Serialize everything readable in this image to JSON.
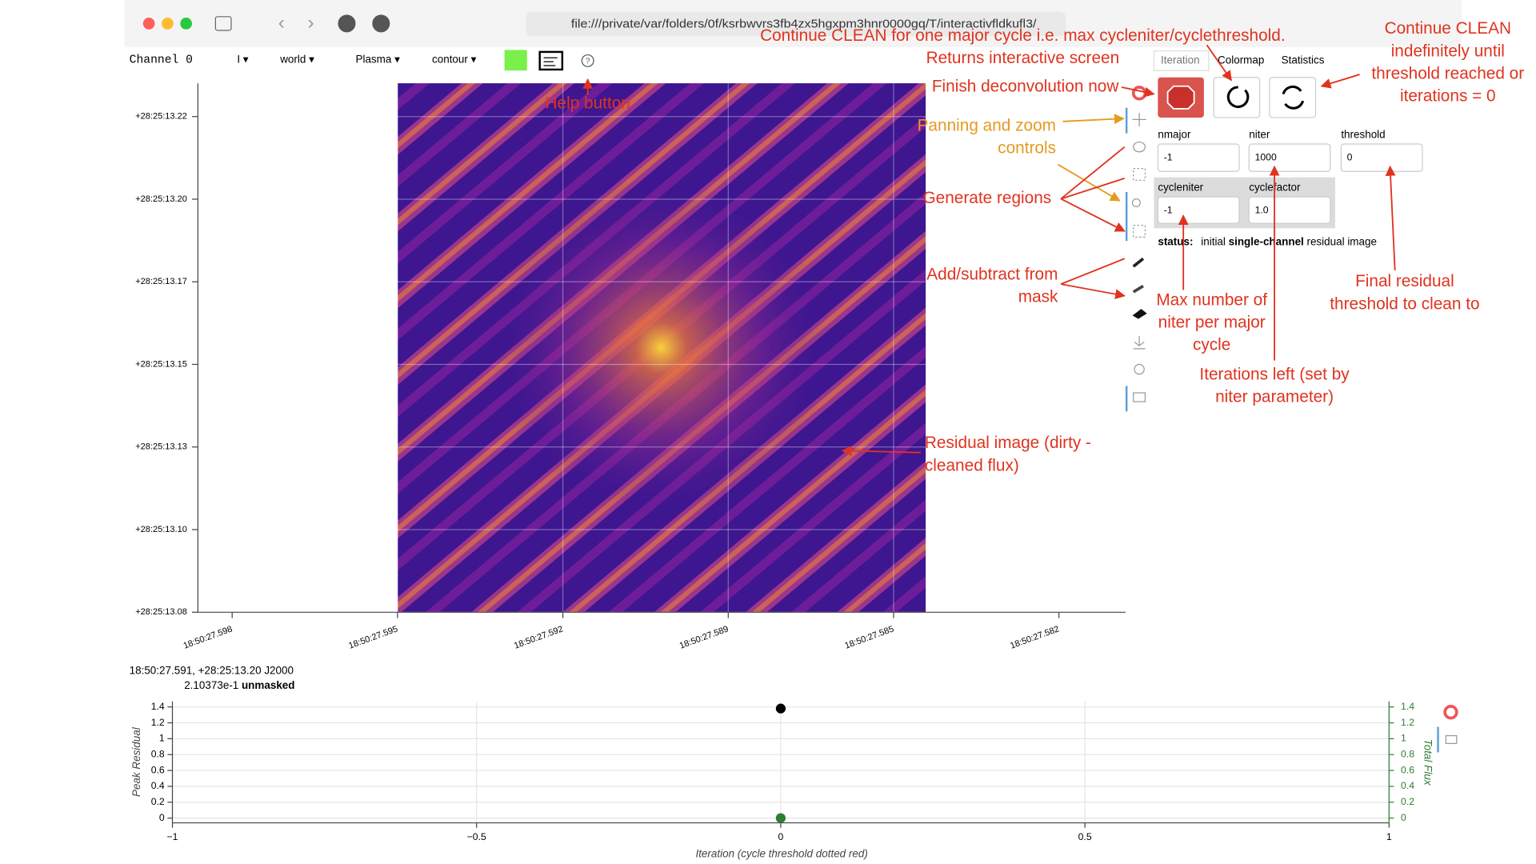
{
  "browser": {
    "url": "file:///private/var/folders/0f/ksrbwvrs3fb4zx5hgxpm3hnr0000gq/T/interactivfldkufl3/"
  },
  "toolbar": {
    "channel": "Channel 0",
    "stokes": "I",
    "coords": "world",
    "colormap": "Plasma",
    "mode": "contour"
  },
  "image_axes": {
    "yticks": [
      "+28:25:13.22",
      "+28:25:13.20",
      "+28:25:13.17",
      "+28:25:13.15",
      "+28:25:13.13",
      "+28:25:13.10",
      "+28:25:13.08"
    ],
    "xticks": [
      "18:50:27.598",
      "18:50:27.595",
      "18:50:27.592",
      "18:50:27.589",
      "18:50:27.585",
      "18:50:27.582"
    ]
  },
  "tabs": [
    "Iteration",
    "Colormap",
    "Statistics"
  ],
  "fields": [
    {
      "label": "nmajor",
      "value": "-1"
    },
    {
      "label": "niter",
      "value": "1000"
    },
    {
      "label": "threshold",
      "value": "0"
    },
    {
      "label": "cycleniter",
      "value": "-1"
    },
    {
      "label": "cyclefactor",
      "value": "1.0"
    }
  ],
  "status": {
    "label": "status:",
    "before": "initial",
    "bold": "single-channel",
    "after": "residual image"
  },
  "cursor_info": {
    "position": "18:50:27.591, +28:25:13.20 J2000",
    "value": "2.10373e-1",
    "flag": "unmasked"
  },
  "annotations": [
    {
      "lines": [
        "Continue CLEAN for one major cycle i.e. max cycleniter/cyclethreshold."
      ]
    },
    {
      "lines": [
        "Returns interactive screen"
      ]
    },
    {
      "lines": [
        "Continue CLEAN",
        "indefinitely until",
        "threshold reached or",
        "iterations = 0"
      ]
    },
    {
      "lines": [
        "Finish deconvolution now"
      ]
    },
    {
      "lines": [
        "Panning and zoom",
        "controls"
      ]
    },
    {
      "lines": [
        "Generate regions"
      ]
    },
    {
      "lines": [
        "Add/subtract from",
        "mask"
      ]
    },
    {
      "lines": [
        "Max number of",
        "niter per major",
        "cycle"
      ]
    },
    {
      "lines": [
        "Iterations left (set by",
        "niter parameter)"
      ]
    },
    {
      "lines": [
        "Final residual",
        "threshold to clean to"
      ]
    },
    {
      "lines": [
        "Residual image (dirty -",
        "cleaned flux)"
      ]
    },
    {
      "lines": [
        "Help button"
      ]
    }
  ],
  "chart_data": {
    "type": "scatter",
    "x_label": "Iteration (cycle threshold dotted red)",
    "y_label": "Peak Residual",
    "y2_label": "Total Flux",
    "x": [
      0
    ],
    "series": [
      {
        "color": "#000000",
        "values": [
          1.38
        ]
      },
      {
        "color": "#2e7d32",
        "values": [
          0
        ],
        "axis": "y2"
      }
    ],
    "xlim": [
      -1,
      1
    ],
    "xticks": [
      {
        "value": -1,
        "label": "−1"
      },
      {
        "value": -0.5,
        "label": "−0.5"
      },
      0,
      0.5,
      1
    ],
    "ylim": [
      -0.06,
      1.47
    ],
    "yticks": [
      0,
      0.2,
      0.4,
      0.6,
      0.8,
      1,
      1.2,
      1.4
    ],
    "y2lim": [
      -0.06,
      1.47
    ],
    "y2ticks": [
      0,
      0.2,
      0.4,
      0.6,
      0.8,
      1,
      1.2,
      1.4
    ],
    "grid": true
  }
}
